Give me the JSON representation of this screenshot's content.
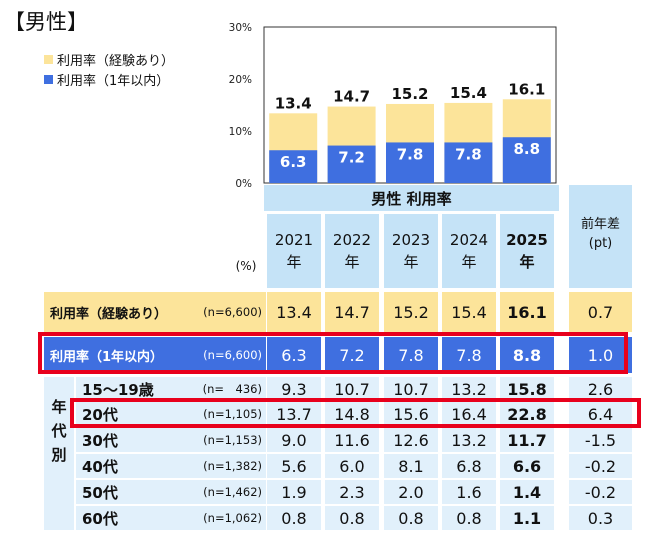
{
  "title": "【男性】",
  "colors": {
    "experience": "#fce49a",
    "within_year": "#3f6fe0",
    "header_bg": "#c5e3f7",
    "row_bg": "#e1f0fb",
    "diff_bg": "#c5e3f7",
    "highlight": "#e8001c"
  },
  "chart_data": {
    "type": "bar",
    "categories": [
      "2021",
      "2022",
      "2023",
      "2024",
      "2025"
    ],
    "series": [
      {
        "name": "利用率（経験あり）",
        "values": [
          13.4,
          14.7,
          15.2,
          15.4,
          16.1
        ]
      },
      {
        "name": "利用率（1年以内）",
        "values": [
          6.3,
          7.2,
          7.8,
          7.8,
          8.8
        ]
      }
    ],
    "yticks": [
      "30%",
      "20%",
      "10%",
      "0%"
    ],
    "ylim": [
      0,
      30
    ],
    "bar_labels_experience": [
      "13.4",
      "14.7",
      "15.2",
      "15.4",
      "16.1"
    ],
    "bar_labels_within": [
      "6.3",
      "7.2",
      "7.8",
      "7.8",
      "8.8"
    ],
    "legend_position": "top-left"
  },
  "table": {
    "group_title": "男性 利用率",
    "unit": "(%)",
    "years": [
      {
        "year": "2021",
        "suffix": "年"
      },
      {
        "year": "2022",
        "suffix": "年"
      },
      {
        "year": "2023",
        "suffix": "年"
      },
      {
        "year": "2024",
        "suffix": "年"
      },
      {
        "year": "2025",
        "suffix": "年"
      }
    ],
    "diff_header": {
      "line1": "前年差",
      "line2": "(pt)"
    },
    "age_group_label": [
      "年",
      "代",
      "別"
    ],
    "rows": [
      {
        "label": "利用率（経験あり）",
        "n": "(n=6,600)",
        "values": [
          "13.4",
          "14.7",
          "15.2",
          "15.4",
          "16.1"
        ],
        "diff": "0.7",
        "style": "experience"
      },
      {
        "label": "利用率（1年以内）",
        "n": "(n=6,600)",
        "values": [
          "6.3",
          "7.2",
          "7.8",
          "7.8",
          "8.8"
        ],
        "diff": "1.0",
        "style": "within"
      },
      {
        "label": "15～19歳",
        "n": "(n=　436)",
        "values": [
          "9.3",
          "10.7",
          "10.7",
          "13.2",
          "15.8"
        ],
        "diff": "2.6",
        "style": "age"
      },
      {
        "label": "20代",
        "n": "(n=1,105)",
        "values": [
          "13.7",
          "14.8",
          "15.6",
          "16.4",
          "22.8"
        ],
        "diff": "6.4",
        "style": "age"
      },
      {
        "label": "30代",
        "n": "(n=1,153)",
        "values": [
          "9.0",
          "11.6",
          "12.6",
          "13.2",
          "11.7"
        ],
        "diff": "-1.5",
        "style": "age"
      },
      {
        "label": "40代",
        "n": "(n=1,382)",
        "values": [
          "5.6",
          "6.0",
          "8.1",
          "6.8",
          "6.6"
        ],
        "diff": "-0.2",
        "style": "age"
      },
      {
        "label": "50代",
        "n": "(n=1,462)",
        "values": [
          "1.9",
          "2.3",
          "2.0",
          "1.6",
          "1.4"
        ],
        "diff": "-0.2",
        "style": "age"
      },
      {
        "label": "60代",
        "n": "(n=1,062)",
        "values": [
          "0.8",
          "0.8",
          "0.8",
          "0.8",
          "1.1"
        ],
        "diff": "0.3",
        "style": "age"
      }
    ]
  }
}
